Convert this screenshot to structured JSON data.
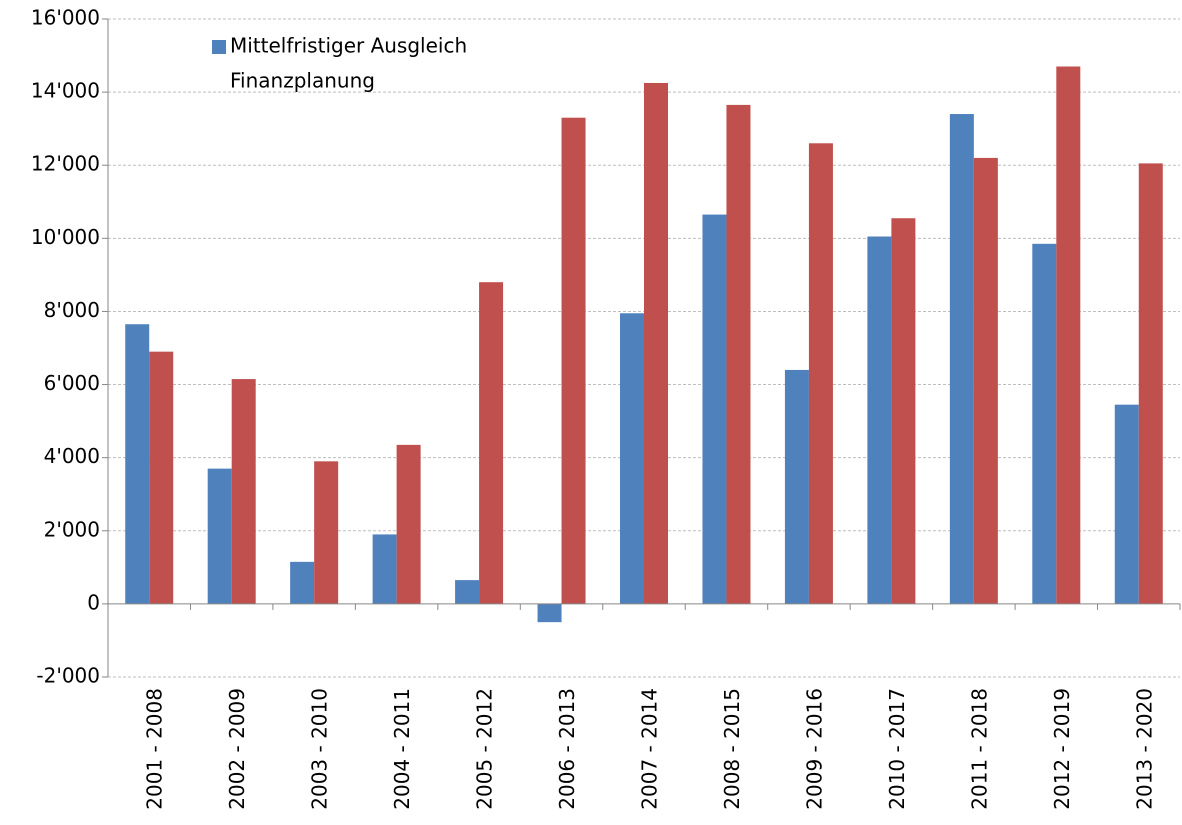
{
  "chart_data": {
    "type": "bar",
    "categories": [
      "2001 - 2008",
      "2002 - 2009",
      "2003 - 2010",
      "2004 - 2011",
      "2005 - 2012",
      "2006 - 2013",
      "2007 - 2014",
      "2008 - 2015",
      "2009 - 2016",
      "2010 - 2017",
      "2011 - 2018",
      "2012 - 2019",
      "2013 - 2020"
    ],
    "series": [
      {
        "name": "Mittelfristiger Ausgleich",
        "color": "#4f81bd",
        "values": [
          7650,
          3700,
          1150,
          1900,
          650,
          -500,
          7950,
          10650,
          6400,
          10050,
          13400,
          9850,
          5450
        ]
      },
      {
        "name": "Finanzplanung",
        "color": "#c0504d",
        "values": [
          6900,
          6150,
          3900,
          4350,
          8800,
          13300,
          14250,
          13650,
          12600,
          10550,
          12200,
          14700,
          12050
        ]
      }
    ],
    "ylim": [
      -2000,
      16000
    ],
    "yticks": [
      {
        "value": -2000,
        "label": "-2'000"
      },
      0,
      {
        "value": 2000,
        "label": "2'000"
      },
      {
        "value": 4000,
        "label": "4'000"
      },
      {
        "value": 6000,
        "label": "6'000"
      },
      {
        "value": 8000,
        "label": "8'000"
      },
      {
        "value": 10000,
        "label": "10'000"
      },
      {
        "value": 12000,
        "label": "12'000"
      },
      {
        "value": 14000,
        "label": "14'000"
      },
      {
        "value": 16000,
        "label": "16'000"
      }
    ],
    "grid": true
  }
}
